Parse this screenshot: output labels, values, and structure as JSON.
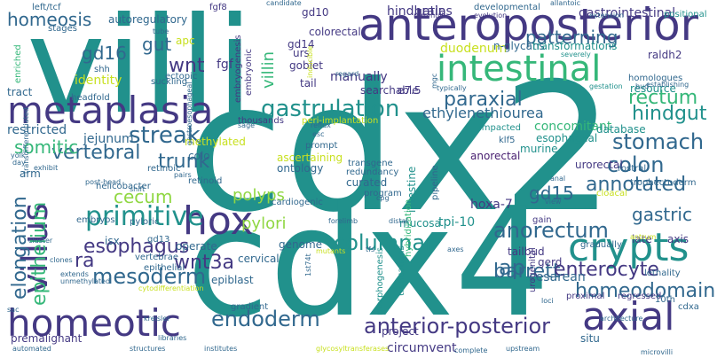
{
  "palette": {
    "teal": "#21918c",
    "blue": "#31688e",
    "indigo": "#443983",
    "purple": "#481f70",
    "darkpurple": "#440154",
    "green": "#35b779",
    "lime": "#90d743",
    "yellow": "#c8e020"
  },
  "words": [
    {
      "text": "villi",
      "color": "teal"
    },
    {
      "text": "cdx2",
      "color": "teal"
    },
    {
      "text": "cdx4",
      "color": "teal"
    },
    {
      "text": "anteroposterior",
      "color": "indigo"
    },
    {
      "text": "intestinal",
      "color": "green"
    },
    {
      "text": "metaplasia",
      "color": "indigo"
    },
    {
      "text": "hox",
      "color": "indigo"
    },
    {
      "text": "crypts",
      "color": "teal"
    },
    {
      "text": "axial",
      "color": "indigo"
    },
    {
      "text": "homeotic",
      "color": "indigo"
    },
    {
      "text": "villus",
      "color": "indigo"
    },
    {
      "text": "gastrulation",
      "color": "teal"
    },
    {
      "text": "primitive",
      "color": "teal"
    },
    {
      "text": "streak",
      "color": "blue"
    },
    {
      "text": "columnar",
      "color": "teal"
    },
    {
      "text": "anterior-posterior",
      "color": "indigo"
    },
    {
      "text": "homeodomain",
      "color": "blue"
    },
    {
      "text": "endoderm",
      "color": "blue"
    },
    {
      "text": "mesoderm",
      "color": "blue"
    },
    {
      "text": "barrett",
      "color": "blue"
    },
    {
      "text": "enterocyte",
      "color": "indigo"
    },
    {
      "text": "anorectum",
      "color": "blue"
    },
    {
      "text": "stomach",
      "color": "blue"
    },
    {
      "text": "colon",
      "color": "blue"
    },
    {
      "text": "rectum",
      "color": "green"
    },
    {
      "text": "hindgut",
      "color": "teal"
    },
    {
      "text": "paraxial",
      "color": "blue"
    },
    {
      "text": "annotated",
      "color": "blue"
    },
    {
      "text": "elongation",
      "color": "blue"
    },
    {
      "text": "epithelium",
      "color": "green"
    },
    {
      "text": "vertebral",
      "color": "blue"
    },
    {
      "text": "trunk",
      "color": "blue"
    },
    {
      "text": "homeosis",
      "color": "blue"
    },
    {
      "text": "patterning",
      "color": "blue"
    },
    {
      "text": "esophagus",
      "color": "indigo"
    },
    {
      "text": "wnt3a",
      "color": "indigo"
    },
    {
      "text": "gastric",
      "color": "blue"
    },
    {
      "text": "ap",
      "color": "blue"
    },
    {
      "text": "gd15",
      "color": "blue"
    },
    {
      "text": "gd16",
      "color": "blue"
    },
    {
      "text": "gut",
      "color": "blue"
    },
    {
      "text": "wnt",
      "color": "indigo"
    },
    {
      "text": "ra",
      "color": "indigo"
    },
    {
      "text": "somitic",
      "color": "green"
    },
    {
      "text": "cecum",
      "color": "lime"
    },
    {
      "text": "polyps",
      "color": "lime"
    },
    {
      "text": "pylori",
      "color": "lime"
    },
    {
      "text": "villin",
      "color": "green"
    },
    {
      "text": "restricted",
      "color": "blue"
    },
    {
      "text": "jejunum",
      "color": "blue"
    },
    {
      "text": "ethylenethiourea",
      "color": "blue"
    },
    {
      "text": "cesarean",
      "color": "blue"
    },
    {
      "text": "premalignant",
      "color": "indigo"
    },
    {
      "text": "circumvent",
      "color": "indigo"
    },
    {
      "text": "project",
      "color": "indigo"
    },
    {
      "text": "situ",
      "color": "blue"
    },
    {
      "text": "hoxa-7",
      "color": "indigo"
    },
    {
      "text": "tpi-10",
      "color": "teal"
    },
    {
      "text": "mucosa",
      "color": "teal"
    },
    {
      "text": "intestine",
      "color": "teal"
    },
    {
      "text": "tailbud",
      "color": "indigo"
    },
    {
      "text": "gerd",
      "color": "indigo"
    },
    {
      "text": "hindbrain",
      "color": "indigo"
    },
    {
      "text": "atlas",
      "color": "indigo"
    },
    {
      "text": "gastrointestinal",
      "color": "indigo"
    },
    {
      "text": "colorectal",
      "color": "indigo"
    },
    {
      "text": "gd10",
      "color": "indigo"
    },
    {
      "text": "gd14",
      "color": "indigo"
    },
    {
      "text": "goblet",
      "color": "indigo"
    },
    {
      "text": "fgf",
      "color": "indigo"
    },
    {
      "text": "fgf8",
      "color": "indigo"
    },
    {
      "text": "apc",
      "color": "yellow"
    },
    {
      "text": "autoregulatory",
      "color": "blue"
    },
    {
      "text": "urs",
      "color": "indigo"
    },
    {
      "text": "manually",
      "color": "indigo"
    },
    {
      "text": "searchable",
      "color": "indigo"
    },
    {
      "text": "tail",
      "color": "indigo"
    },
    {
      "text": "e7.5",
      "color": "indigo"
    },
    {
      "text": "duodenum",
      "color": "yellow"
    },
    {
      "text": "n-glycans",
      "color": "blue"
    },
    {
      "text": "transformations",
      "color": "teal"
    },
    {
      "text": "homologues",
      "color": "blue"
    },
    {
      "text": "resource",
      "color": "teal"
    },
    {
      "text": "raldh2",
      "color": "indigo"
    },
    {
      "text": "identity",
      "color": "yellow"
    },
    {
      "text": "tract",
      "color": "blue"
    },
    {
      "text": "embryogenesis",
      "color": "indigo"
    },
    {
      "text": "embryonic",
      "color": "indigo"
    },
    {
      "text": "concomitant",
      "color": "green"
    },
    {
      "text": "database",
      "color": "teal"
    },
    {
      "text": "esophageal",
      "color": "teal"
    },
    {
      "text": "murine",
      "color": "teal"
    },
    {
      "text": "anorectal",
      "color": "purple"
    },
    {
      "text": "urorectal",
      "color": "indigo"
    },
    {
      "text": "curated",
      "color": "blue"
    },
    {
      "text": "ontology",
      "color": "blue"
    },
    {
      "text": "ascertaining",
      "color": "yellow"
    },
    {
      "text": "cardiogenic",
      "color": "blue"
    },
    {
      "text": "methylated",
      "color": "yellow"
    },
    {
      "text": "colo",
      "color": "blue"
    },
    {
      "text": "retinoic",
      "color": "blue"
    },
    {
      "text": "retinoid",
      "color": "blue"
    },
    {
      "text": "helicobacter",
      "color": "blue"
    },
    {
      "text": "pyloric",
      "color": "blue"
    },
    {
      "text": "isx",
      "color": "blue"
    },
    {
      "text": "gd13",
      "color": "blue"
    },
    {
      "text": "operate",
      "color": "blue"
    },
    {
      "text": "genome",
      "color": "blue"
    },
    {
      "text": "cervical",
      "color": "blue"
    },
    {
      "text": "epiblast",
      "color": "blue"
    },
    {
      "text": "gradient",
      "color": "blue"
    },
    {
      "text": "morphogenesis",
      "color": "teal"
    },
    {
      "text": "truncations",
      "color": "teal"
    },
    {
      "text": "hybridization",
      "color": "green"
    },
    {
      "text": "pipeline",
      "color": "blue"
    },
    {
      "text": "program",
      "color": "blue"
    },
    {
      "text": "vertebrae",
      "color": "blue"
    },
    {
      "text": "epithelial",
      "color": "blue"
    },
    {
      "text": "embryos",
      "color": "blue"
    },
    {
      "text": "arm",
      "color": "blue"
    },
    {
      "text": "late",
      "color": "indigo"
    },
    {
      "text": "axis",
      "color": "indigo"
    },
    {
      "text": "urogenital",
      "color": "indigo"
    },
    {
      "text": "proximal",
      "color": "indigo"
    },
    {
      "text": "regressed",
      "color": "indigo"
    },
    {
      "text": "10th",
      "color": "blue"
    },
    {
      "text": "cdxa",
      "color": "blue"
    },
    {
      "text": "gain",
      "color": "indigo"
    },
    {
      "text": "cloacal",
      "color": "yellow"
    },
    {
      "text": "trophectoderm",
      "color": "blue"
    },
    {
      "text": "rostral",
      "color": "blue"
    },
    {
      "text": "lethality",
      "color": "blue"
    },
    {
      "text": "gradually",
      "color": "blue"
    },
    {
      "text": "klf5",
      "color": "blue"
    },
    {
      "text": "impacted",
      "color": "teal"
    },
    {
      "text": "developmental",
      "color": "blue"
    },
    {
      "text": "prompt",
      "color": "blue"
    },
    {
      "text": "transgene",
      "color": "blue"
    },
    {
      "text": "redundancy",
      "color": "blue"
    },
    {
      "text": "thousands",
      "color": "indigo"
    },
    {
      "text": "peri-implantation",
      "color": "yellow"
    },
    {
      "text": "left/tcf",
      "color": "blue"
    },
    {
      "text": "stages",
      "color": "blue"
    },
    {
      "text": "enriched",
      "color": "green"
    },
    {
      "text": "shh",
      "color": "blue"
    },
    {
      "text": "headfold",
      "color": "blue"
    },
    {
      "text": "suckling",
      "color": "blue"
    },
    {
      "text": "ectopic",
      "color": "blue"
    },
    {
      "text": "candidate",
      "color": "blue"
    },
    {
      "text": "tube",
      "color": "blue"
    },
    {
      "text": "rare-null",
      "color": "indigo"
    },
    {
      "text": "evolution",
      "color": "indigo"
    },
    {
      "text": "allantoic",
      "color": "blue"
    },
    {
      "text": "extension",
      "color": "blue"
    },
    {
      "text": "positional",
      "color": "teal"
    },
    {
      "text": "severely",
      "color": "teal"
    },
    {
      "text": "gestation",
      "color": "teal"
    },
    {
      "text": "bud",
      "color": "blue"
    },
    {
      "text": "establishing",
      "color": "blue"
    },
    {
      "text": "typically",
      "color": "blue"
    },
    {
      "text": "regard",
      "color": "blue"
    },
    {
      "text": "yolk",
      "color": "blue"
    },
    {
      "text": "day",
      "color": "blue"
    },
    {
      "text": "sac",
      "color": "blue"
    },
    {
      "text": "exhibit",
      "color": "blue"
    },
    {
      "text": "post-head",
      "color": "blue"
    },
    {
      "text": "shift",
      "color": "blue"
    },
    {
      "text": "pairs",
      "color": "blue"
    },
    {
      "text": "transdifferentiated",
      "color": "blue"
    },
    {
      "text": "cluster",
      "color": "blue"
    },
    {
      "text": "clones",
      "color": "blue"
    },
    {
      "text": "extends",
      "color": "blue"
    },
    {
      "text": "unmethylated",
      "color": "blue"
    },
    {
      "text": "cytodifferentiation",
      "color": "yellow"
    },
    {
      "text": "automated",
      "color": "blue"
    },
    {
      "text": "structures",
      "color": "blue"
    },
    {
      "text": "institutes",
      "color": "blue"
    },
    {
      "text": "libraries",
      "color": "blue"
    },
    {
      "text": "kreisler",
      "color": "blue"
    },
    {
      "text": "glycosyltransferases",
      "color": "yellow"
    },
    {
      "text": "complete",
      "color": "blue"
    },
    {
      "text": "upstream",
      "color": "blue"
    },
    {
      "text": "microvilli",
      "color": "blue"
    },
    {
      "text": "architecture",
      "color": "blue"
    },
    {
      "text": "cpg",
      "color": "blue"
    },
    {
      "text": "forelimb",
      "color": "blue"
    },
    {
      "text": "distal",
      "color": "blue"
    },
    {
      "text": "view",
      "color": "blue"
    },
    {
      "text": "anal",
      "color": "blue"
    },
    {
      "text": "tfs",
      "color": "blue"
    },
    {
      "text": "mutants",
      "color": "yellow"
    },
    {
      "text": "mgc",
      "color": "blue"
    },
    {
      "text": "antrum",
      "color": "yellow"
    },
    {
      "text": "reflux",
      "color": "blue"
    },
    {
      "text": "esc",
      "color": "blue"
    },
    {
      "text": "gastroesophageal",
      "color": "blue"
    },
    {
      "text": "sage",
      "color": "blue"
    },
    {
      "text": "inducible",
      "color": "yellow"
    },
    {
      "text": "loci",
      "color": "blue"
    },
    {
      "text": "1st74t",
      "color": "blue"
    },
    {
      "text": "axes",
      "color": "blue"
    }
  ]
}
